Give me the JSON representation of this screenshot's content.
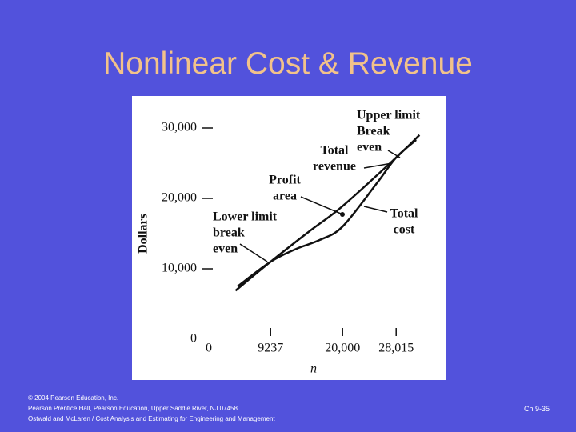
{
  "slide": {
    "title": "Nonlinear Cost & Revenue",
    "footer": [
      "© 2004 Pearson Education, Inc.",
      "Pearson Prentice Hall, Pearson Education, Upper Saddle River, NJ 07458",
      "Ostwald and McLaren / Cost Analysis and Estimating for Engineering and Management"
    ],
    "page": "Ch 9-35"
  },
  "chart_data": {
    "type": "line",
    "x_label": "n",
    "y_label": "Dollars",
    "xlim": [
      0,
      32000
    ],
    "ylim": [
      0,
      32000
    ],
    "xticks": [
      0,
      9237,
      {
        "value": 20000,
        "label": "20,000"
      },
      {
        "value": 28015,
        "label": "28,015"
      }
    ],
    "yticks": [
      0,
      {
        "value": 10000,
        "label": "10,000"
      },
      {
        "value": 20000,
        "label": "20,000"
      },
      {
        "value": 30000,
        "label": "30,000"
      }
    ],
    "series": [
      {
        "name": "Total revenue",
        "color": "#111111",
        "x": [
          4000,
          9237,
          15000,
          20000,
          28015,
          31500
        ],
        "values": [
          6900,
          11000,
          15300,
          18900,
          25800,
          29000
        ]
      },
      {
        "name": "Total cost",
        "color": "#111111",
        "x": [
          4300,
          9237,
          13000,
          16600,
          20000,
          25000,
          28015,
          31000
        ],
        "values": [
          7500,
          11000,
          12800,
          14100,
          16000,
          22000,
          25800,
          28300
        ]
      }
    ],
    "annotations": [
      {
        "lines": [
          "Upper limit",
          "Break",
          "even"
        ]
      },
      {
        "lines": [
          "Total",
          "revenue"
        ]
      },
      {
        "lines": [
          "Profit",
          "area"
        ]
      },
      {
        "lines": [
          "Lower limit",
          "break",
          "even"
        ]
      },
      {
        "lines": [
          "Total",
          "cost"
        ]
      }
    ]
  }
}
